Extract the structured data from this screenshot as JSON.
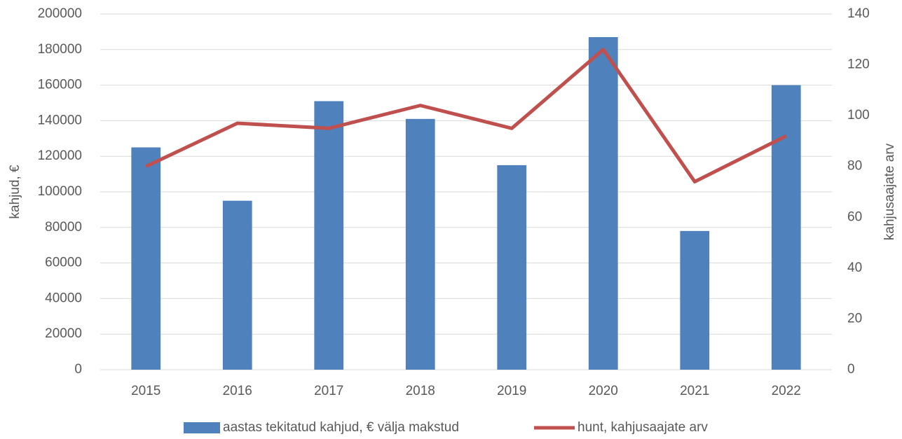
{
  "chart_data": {
    "type": "bar+line",
    "categories": [
      "2015",
      "2016",
      "2017",
      "2018",
      "2019",
      "2020",
      "2021",
      "2022"
    ],
    "series": [
      {
        "name": "aastas tekitatud kahjud, € välja makstud",
        "type": "bar",
        "color": "#4f81bd",
        "values": [
          125000,
          95000,
          151000,
          141000,
          115000,
          187000,
          78000,
          160000
        ]
      },
      {
        "name": "hunt, kahjusaajate arv",
        "type": "line",
        "axis": "y2",
        "color": "#c0504d",
        "values": [
          80,
          97,
          95,
          104,
          95,
          126,
          74,
          92
        ]
      }
    ],
    "ylabel": "kahjud, €",
    "y2label": "kahjusaajate arv",
    "ylim": [
      0,
      200000
    ],
    "yticks": [
      0,
      20000,
      40000,
      60000,
      80000,
      100000,
      120000,
      140000,
      160000,
      180000,
      200000
    ],
    "y2lim": [
      0,
      140
    ],
    "y2ticks": [
      0,
      20,
      40,
      60,
      80,
      100,
      120,
      140
    ],
    "grid": true,
    "legend": "bottom"
  }
}
